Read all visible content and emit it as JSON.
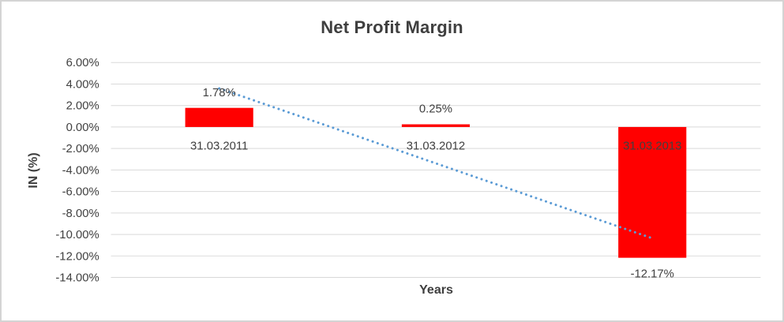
{
  "chart": {
    "title": "Net Profit Margin",
    "y_axis_title": "IN (%)",
    "x_axis_title": "Years"
  },
  "chart_data": {
    "type": "bar",
    "title": "Net Profit Margin",
    "xlabel": "Years",
    "ylabel": "IN (%)",
    "categories": [
      "31.03.2011",
      "31.03.2012",
      "31.03.2013"
    ],
    "values": [
      1.78,
      0.25,
      -12.17
    ],
    "value_labels": [
      "1.78%",
      "0.25%",
      "-12.17%"
    ],
    "ylim": [
      -14,
      6
    ],
    "ytick_step": 2,
    "ytick_labels": [
      "6.00%",
      "4.00%",
      "2.00%",
      "0.00%",
      "-2.00%",
      "-4.00%",
      "-6.00%",
      "-8.00%",
      "-10.00%",
      "-12.00%",
      "-14.00%"
    ],
    "grid": true,
    "legend": "none",
    "bar_color": "#ff0000",
    "gridline_color": "#d9d9d9",
    "text_color": "#404040",
    "trendline": {
      "type": "linear",
      "style": "dotted",
      "color": "#5b9bd5"
    }
  }
}
